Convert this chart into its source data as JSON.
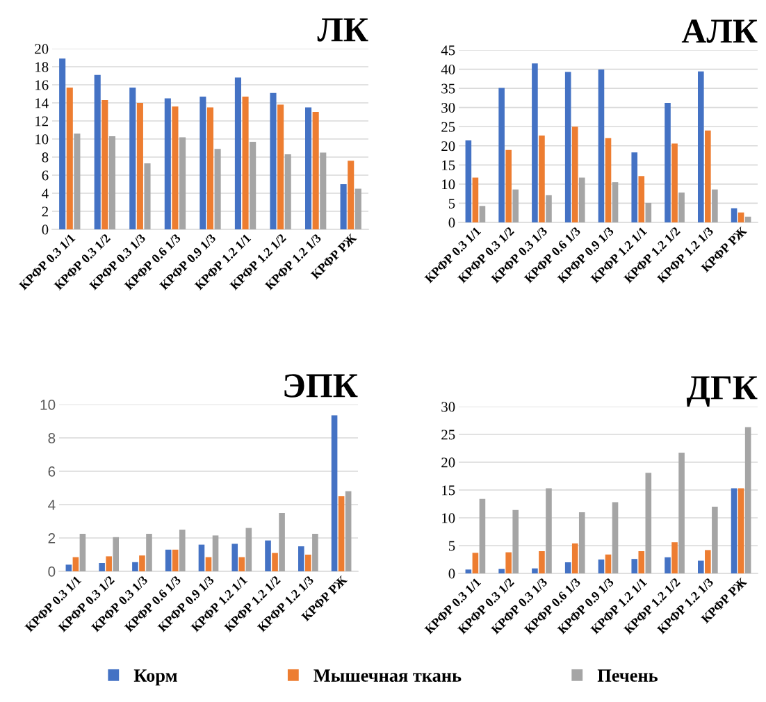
{
  "chart_data": [
    {
      "type": "bar",
      "title": "ЛК",
      "categories": [
        "КРФР 0.3 1/1",
        "КРФР 0.3 1/2",
        "КРФР 0.3 1/3",
        "КРФР 0.6 1/3",
        "КРФР 0.9 1/3",
        "КРФР 1.2 1/1",
        "КРФР 1.2 1/2",
        "КРФР 1.2 1/3",
        "КРФР РЖ"
      ],
      "series": [
        {
          "name": "Корм",
          "color": "#4472c4",
          "values": [
            18.9,
            17.1,
            15.7,
            14.5,
            14.7,
            16.8,
            15.1,
            13.5,
            5.0
          ]
        },
        {
          "name": "Мышечная ткань",
          "color": "#ed7d31",
          "values": [
            15.7,
            14.3,
            14.0,
            13.6,
            13.5,
            14.7,
            13.8,
            13.0,
            7.6
          ]
        },
        {
          "name": "Печень",
          "color": "#a5a5a5",
          "values": [
            10.6,
            10.3,
            7.3,
            10.2,
            8.9,
            9.7,
            8.3,
            8.5,
            4.5
          ]
        }
      ],
      "ylim": [
        0,
        20
      ],
      "yticks": [
        0,
        2,
        4,
        6,
        8,
        10,
        12,
        14,
        16,
        18,
        20
      ],
      "grid": "y",
      "legend": "bottom"
    },
    {
      "type": "bar",
      "title": "АЛК",
      "categories": [
        "КРФР 0.3 1/1",
        "КРФР 0.3 1/2",
        "КРФР 0.3 1/3",
        "КРФР 0.6 1/3",
        "КРФР 0.9 1/3",
        "КРФР 1.2 1/1",
        "КРФР 1.2 1/2",
        "КРФР 1.2 1/3",
        "КРФР РЖ"
      ],
      "series": [
        {
          "color": "#4472c4",
          "values": [
            21.4,
            35.1,
            41.5,
            39.3,
            39.9,
            18.3,
            31.2,
            39.4,
            3.7
          ]
        },
        {
          "color": "#ed7d31",
          "values": [
            11.7,
            18.9,
            22.7,
            25.0,
            22.0,
            12.1,
            20.6,
            24.0,
            2.6
          ]
        },
        {
          "color": "#a5a5a5",
          "values": [
            4.3,
            8.6,
            7.1,
            11.7,
            10.5,
            5.1,
            7.8,
            8.6,
            1.5
          ]
        }
      ],
      "ylim": [
        0,
        45
      ],
      "yticks": [
        0,
        5,
        10,
        15,
        20,
        25,
        30,
        35,
        40,
        45
      ],
      "grid": "y"
    },
    {
      "type": "bar",
      "title": "ЭПК",
      "categories": [
        "КРФР 0.3 1/1",
        "КРФР 0.3 1/2",
        "КРФР 0.3 1/3",
        "КРФР 0.6 1/3",
        "КРФР 0.9 1/3",
        "КРФР 1.2 1/1",
        "КРФР 1.2 1/2",
        "КРФР 1.2 1/3",
        "КРФР РЖ"
      ],
      "series": [
        {
          "color": "#4472c4",
          "values": [
            0.4,
            0.5,
            0.55,
            1.3,
            1.6,
            1.65,
            1.85,
            1.5,
            9.35
          ]
        },
        {
          "color": "#ed7d31",
          "values": [
            0.85,
            0.9,
            0.95,
            1.3,
            0.85,
            0.85,
            1.1,
            1.0,
            4.5
          ]
        },
        {
          "color": "#a5a5a5",
          "values": [
            2.25,
            2.05,
            2.25,
            2.5,
            2.15,
            2.6,
            3.5,
            2.25,
            4.8
          ]
        }
      ],
      "ylim": [
        0,
        10
      ],
      "yticks": [
        0,
        2,
        4,
        6,
        8,
        10
      ],
      "grid": "y"
    },
    {
      "type": "bar",
      "title": "ДГК",
      "categories": [
        "КРФР 0.3 1/1",
        "КРФР 0.3 1/2",
        "КРФР 0.3 1/3",
        "КРФР 0.6 1/3",
        "КРФР 0.9 1/3",
        "КРФР 1.2 1/1",
        "КРФР 1.2 1/2",
        "КРФР 1.2 1/3",
        "КРФР РЖ"
      ],
      "series": [
        {
          "color": "#4472c4",
          "values": [
            0.7,
            0.8,
            0.9,
            2.0,
            2.5,
            2.6,
            2.9,
            2.3,
            15.3
          ]
        },
        {
          "color": "#ed7d31",
          "values": [
            3.7,
            3.8,
            4.0,
            5.4,
            3.4,
            4.0,
            5.6,
            4.2,
            15.3
          ]
        },
        {
          "color": "#a5a5a5",
          "values": [
            13.4,
            11.4,
            15.3,
            11.0,
            12.8,
            18.1,
            21.7,
            12.0,
            26.3
          ]
        }
      ],
      "ylim": [
        0,
        30
      ],
      "yticks": [
        0,
        5,
        10,
        15,
        20,
        25,
        30
      ],
      "grid": "y"
    }
  ]
}
